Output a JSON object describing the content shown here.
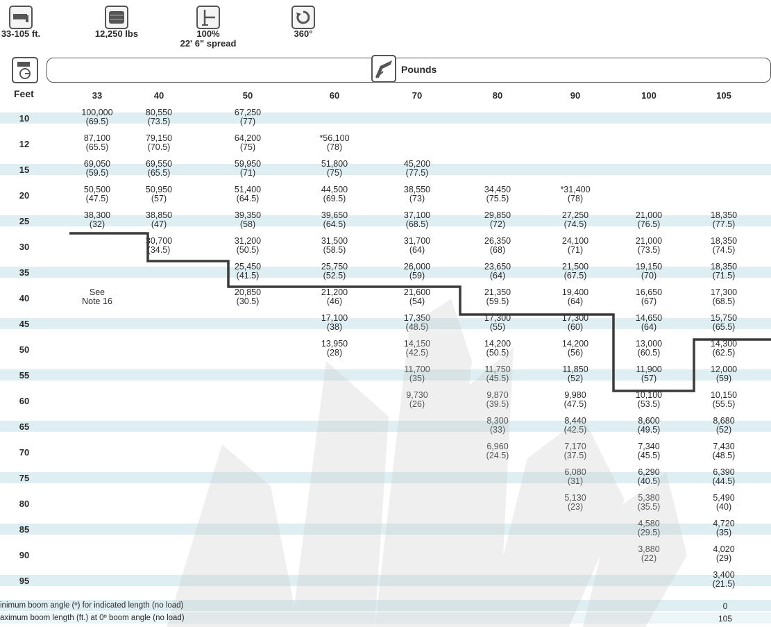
{
  "specs": [
    {
      "icon": "boom-length-icon",
      "label": "33-105 ft."
    },
    {
      "icon": "counterweight-icon",
      "label": "12,250 lbs"
    },
    {
      "icon": "outrigger-icon",
      "label": "100%",
      "sublabel": "22' 6\" spread"
    },
    {
      "icon": "rotation-icon",
      "label": "360°"
    }
  ],
  "header": {
    "label": "Pounds",
    "icon": "load-icon",
    "corner_icon": "radius-icon"
  },
  "row_header": "Feet",
  "columns": [
    "33",
    "40",
    "50",
    "60",
    "70",
    "80",
    "90",
    "100",
    "105"
  ],
  "rows": [
    {
      "radius": "10",
      "cells": [
        [
          "100,000",
          "(69.5)"
        ],
        [
          "80,550",
          "(73.5)"
        ],
        [
          "67,250",
          "(77)"
        ],
        null,
        null,
        null,
        null,
        null,
        null
      ]
    },
    {
      "radius": "12",
      "cells": [
        [
          "87,100",
          "(65.5)"
        ],
        [
          "79,150",
          "(70.5)"
        ],
        [
          "64,200",
          "(75)"
        ],
        [
          "*56,100",
          "(78)"
        ],
        null,
        null,
        null,
        null,
        null
      ]
    },
    {
      "radius": "15",
      "cells": [
        [
          "69,050",
          "(59.5)"
        ],
        [
          "69,550",
          "(65.5)"
        ],
        [
          "59,950",
          "(71)"
        ],
        [
          "51,800",
          "(75)"
        ],
        [
          "45,200",
          "(77.5)"
        ],
        null,
        null,
        null,
        null
      ]
    },
    {
      "radius": "20",
      "cells": [
        [
          "50,500",
          "(47.5)"
        ],
        [
          "50,950",
          "(57)"
        ],
        [
          "51,400",
          "(64.5)"
        ],
        [
          "44,500",
          "(69.5)"
        ],
        [
          "38,550",
          "(73)"
        ],
        [
          "34,450",
          "(75.5)"
        ],
        [
          "*31,400",
          "(78)"
        ],
        null,
        null
      ]
    },
    {
      "radius": "25",
      "cells": [
        [
          "38,300",
          "(32)"
        ],
        [
          "38,850",
          "(47)"
        ],
        [
          "39,350",
          "(58)"
        ],
        [
          "39,650",
          "(64.5)"
        ],
        [
          "37,100",
          "(68.5)"
        ],
        [
          "29,850",
          "(72)"
        ],
        [
          "27,250",
          "(74.5)"
        ],
        [
          "21,000",
          "(76.5)"
        ],
        [
          "18,350",
          "(77.5)"
        ]
      ]
    },
    {
      "radius": "30",
      "cells": [
        null,
        [
          "30,700",
          "(34.5)"
        ],
        [
          "31,200",
          "(50.5)"
        ],
        [
          "31,500",
          "(58.5)"
        ],
        [
          "31,700",
          "(64)"
        ],
        [
          "26,350",
          "(68)"
        ],
        [
          "24,100",
          "(71)"
        ],
        [
          "21,000",
          "(73.5)"
        ],
        [
          "18,350",
          "(74.5)"
        ]
      ]
    },
    {
      "radius": "35",
      "cells": [
        null,
        null,
        [
          "25,450",
          "(41.5)"
        ],
        [
          "25,750",
          "(52.5)"
        ],
        [
          "26,000",
          "(59)"
        ],
        [
          "23,650",
          "(64)"
        ],
        [
          "21,500",
          "(67.5)"
        ],
        [
          "19,150",
          "(70)"
        ],
        [
          "18,350",
          "(71.5)"
        ]
      ]
    },
    {
      "radius": "40",
      "cells": [
        [
          "See",
          "Note 16"
        ],
        null,
        [
          "20,850",
          "(30.5)"
        ],
        [
          "21,200",
          "(46)"
        ],
        [
          "21,600",
          "(54)"
        ],
        [
          "21,350",
          "(59.5)"
        ],
        [
          "19,400",
          "(64)"
        ],
        [
          "16,650",
          "(67)"
        ],
        [
          "17,300",
          "(68.5)"
        ]
      ]
    },
    {
      "radius": "45",
      "cells": [
        null,
        null,
        null,
        [
          "17,100",
          "(38)"
        ],
        [
          "17,350",
          "(48.5)"
        ],
        [
          "17,300",
          "(55)"
        ],
        [
          "17,300",
          "(60)"
        ],
        [
          "14,650",
          "(64)"
        ],
        [
          "15,750",
          "(65.5)"
        ]
      ]
    },
    {
      "radius": "50",
      "cells": [
        null,
        null,
        null,
        [
          "13,950",
          "(28)"
        ],
        [
          "14,150",
          "(42.5)"
        ],
        [
          "14,200",
          "(50.5)"
        ],
        [
          "14,200",
          "(56)"
        ],
        [
          "13,000",
          "(60.5)"
        ],
        [
          "14,300",
          "(62.5)"
        ]
      ]
    },
    {
      "radius": "55",
      "cells": [
        null,
        null,
        null,
        null,
        [
          "11,700",
          "(35)"
        ],
        [
          "11,750",
          "(45.5)"
        ],
        [
          "11,850",
          "(52)"
        ],
        [
          "11,900",
          "(57)"
        ],
        [
          "12,000",
          "(59)"
        ]
      ]
    },
    {
      "radius": "60",
      "cells": [
        null,
        null,
        null,
        null,
        [
          "9,730",
          "(26)"
        ],
        [
          "9,870",
          "(39.5)"
        ],
        [
          "9,980",
          "(47.5)"
        ],
        [
          "10,100",
          "(53.5)"
        ],
        [
          "10,150",
          "(55.5)"
        ]
      ]
    },
    {
      "radius": "65",
      "cells": [
        null,
        null,
        null,
        null,
        null,
        [
          "8,300",
          "(33)"
        ],
        [
          "8,440",
          "(42.5)"
        ],
        [
          "8,600",
          "(49.5)"
        ],
        [
          "8,680",
          "(52)"
        ]
      ]
    },
    {
      "radius": "70",
      "cells": [
        null,
        null,
        null,
        null,
        null,
        [
          "6,960",
          "(24.5)"
        ],
        [
          "7,170",
          "(37.5)"
        ],
        [
          "7,340",
          "(45.5)"
        ],
        [
          "7,430",
          "(48.5)"
        ]
      ]
    },
    {
      "radius": "75",
      "cells": [
        null,
        null,
        null,
        null,
        null,
        null,
        [
          "6,080",
          "(31)"
        ],
        [
          "6,290",
          "(40.5)"
        ],
        [
          "6,390",
          "(44.5)"
        ]
      ]
    },
    {
      "radius": "80",
      "cells": [
        null,
        null,
        null,
        null,
        null,
        null,
        [
          "5,130",
          "(23)"
        ],
        [
          "5,380",
          "(35.5)"
        ],
        [
          "5,490",
          "(40)"
        ]
      ]
    },
    {
      "radius": "85",
      "cells": [
        null,
        null,
        null,
        null,
        null,
        null,
        null,
        [
          "4,580",
          "(29.5)"
        ],
        [
          "4,720",
          "(35)"
        ]
      ]
    },
    {
      "radius": "90",
      "cells": [
        null,
        null,
        null,
        null,
        null,
        null,
        null,
        [
          "3,880",
          "(22)"
        ],
        [
          "4,020",
          "(29)"
        ]
      ]
    },
    {
      "radius": "95",
      "cells": [
        null,
        null,
        null,
        null,
        null,
        null,
        null,
        null,
        [
          "3,400",
          "(21.5)"
        ]
      ]
    }
  ],
  "notes": [
    {
      "text": "inimum boom angle (º) for indicated length (no load)",
      "value": "0"
    },
    {
      "text": "aximum boom length (ft.) at 0º boom angle (no load)",
      "value": "105"
    }
  ],
  "watermark": {
    "color": "#c8c8c8"
  },
  "colors": {
    "band": "#dfeef3",
    "line": "#3a3a3a"
  }
}
